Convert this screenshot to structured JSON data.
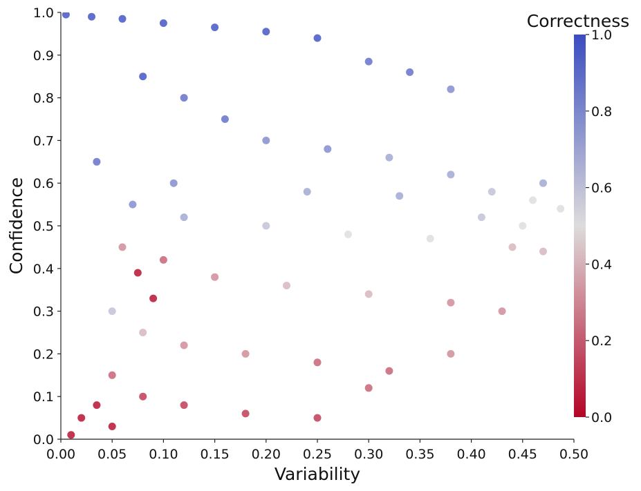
{
  "chart_data": {
    "type": "scatter",
    "title": "",
    "xlabel": "Variability",
    "ylabel": "Confidence",
    "xlim": [
      0.0,
      0.5
    ],
    "ylim": [
      0.0,
      1.0
    ],
    "xticks": [
      "0.00",
      "0.05",
      "0.10",
      "0.15",
      "0.20",
      "0.25",
      "0.30",
      "0.35",
      "0.40",
      "0.45",
      "0.50"
    ],
    "yticks": [
      "0.0",
      "0.1",
      "0.2",
      "0.3",
      "0.4",
      "0.5",
      "0.6",
      "0.7",
      "0.8",
      "0.9",
      "1.0"
    ],
    "grid": false,
    "colormap": "coolwarm",
    "color_low": "#b40426",
    "color_mid": "#dddcdc",
    "color_high": "#3b4cc0",
    "colorbar": {
      "title": "Correctness",
      "range": [
        0.0,
        1.0
      ],
      "ticks": [
        "0.0",
        "0.2",
        "0.4",
        "0.6",
        "0.8",
        "1.0"
      ]
    },
    "point_opacity": 0.8,
    "series": [
      {
        "color_by": "correctness",
        "points": [
          [
            0.005,
            0.995,
            1.0
          ],
          [
            0.03,
            0.99,
            1.0
          ],
          [
            0.06,
            0.985,
            1.0
          ],
          [
            0.1,
            0.975,
            1.0
          ],
          [
            0.15,
            0.965,
            1.0
          ],
          [
            0.2,
            0.955,
            1.0
          ],
          [
            0.25,
            0.94,
            1.0
          ],
          [
            0.3,
            0.885,
            0.9
          ],
          [
            0.34,
            0.86,
            0.9
          ],
          [
            0.38,
            0.82,
            0.8
          ],
          [
            0.08,
            0.85,
            1.0
          ],
          [
            0.12,
            0.8,
            0.9
          ],
          [
            0.16,
            0.75,
            0.9
          ],
          [
            0.2,
            0.7,
            0.8
          ],
          [
            0.26,
            0.68,
            0.8
          ],
          [
            0.32,
            0.66,
            0.7
          ],
          [
            0.38,
            0.62,
            0.7
          ],
          [
            0.42,
            0.58,
            0.6
          ],
          [
            0.46,
            0.56,
            0.5
          ],
          [
            0.487,
            0.54,
            0.5
          ],
          [
            0.07,
            0.55,
            0.8
          ],
          [
            0.12,
            0.52,
            0.7
          ],
          [
            0.2,
            0.5,
            0.6
          ],
          [
            0.28,
            0.48,
            0.5
          ],
          [
            0.36,
            0.47,
            0.5
          ],
          [
            0.44,
            0.45,
            0.4
          ],
          [
            0.47,
            0.44,
            0.4
          ],
          [
            0.06,
            0.45,
            0.3
          ],
          [
            0.1,
            0.42,
            0.2
          ],
          [
            0.15,
            0.38,
            0.3
          ],
          [
            0.22,
            0.36,
            0.4
          ],
          [
            0.3,
            0.34,
            0.4
          ],
          [
            0.38,
            0.32,
            0.3
          ],
          [
            0.43,
            0.3,
            0.3
          ],
          [
            0.05,
            0.3,
            0.6
          ],
          [
            0.08,
            0.25,
            0.4
          ],
          [
            0.12,
            0.22,
            0.3
          ],
          [
            0.18,
            0.2,
            0.3
          ],
          [
            0.25,
            0.18,
            0.2
          ],
          [
            0.32,
            0.16,
            0.2
          ],
          [
            0.38,
            0.2,
            0.3
          ],
          [
            0.05,
            0.15,
            0.2
          ],
          [
            0.08,
            0.1,
            0.1
          ],
          [
            0.12,
            0.08,
            0.1
          ],
          [
            0.18,
            0.06,
            0.1
          ],
          [
            0.25,
            0.05,
            0.1
          ],
          [
            0.3,
            0.12,
            0.2
          ],
          [
            0.02,
            0.05,
            0.0
          ],
          [
            0.035,
            0.08,
            0.0
          ],
          [
            0.05,
            0.03,
            0.0
          ],
          [
            0.01,
            0.01,
            0.0
          ],
          [
            0.035,
            0.65,
            0.9
          ],
          [
            0.11,
            0.6,
            0.8
          ],
          [
            0.24,
            0.58,
            0.7
          ],
          [
            0.33,
            0.57,
            0.7
          ],
          [
            0.41,
            0.52,
            0.6
          ],
          [
            0.45,
            0.5,
            0.5
          ],
          [
            0.47,
            0.6,
            0.7
          ],
          [
            0.075,
            0.39,
            0.0
          ],
          [
            0.09,
            0.33,
            0.0
          ]
        ]
      }
    ]
  }
}
